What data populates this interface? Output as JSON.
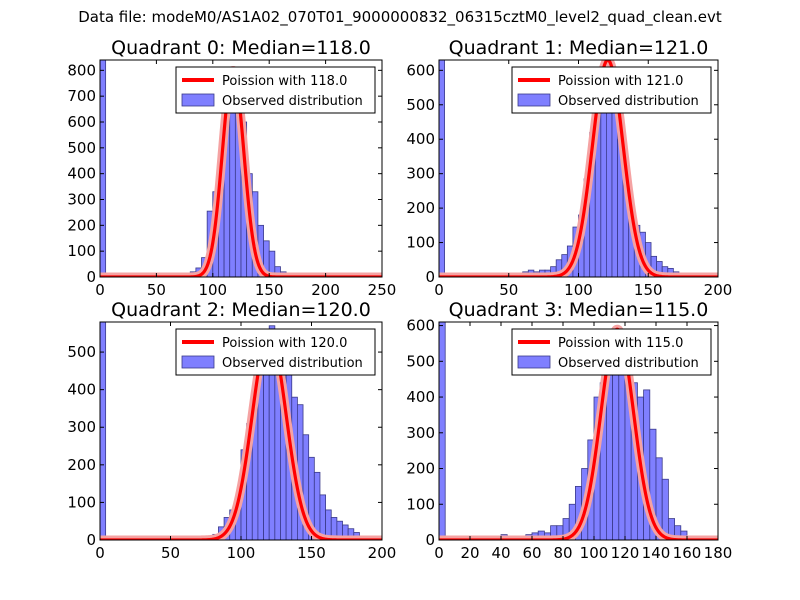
{
  "figure": {
    "title": "Data file: modeM0/AS1A02_070T01_9000000832_06315cztM0_level2_quad_clean.evt"
  },
  "chart_data": [
    {
      "type": "bar",
      "title": "Quadrant 0: Median=118.0",
      "median": 118.0,
      "xlim": [
        0,
        250
      ],
      "ylim": [
        0,
        840
      ],
      "xticks": [
        0,
        50,
        100,
        150,
        200,
        250
      ],
      "yticks": [
        0,
        100,
        200,
        300,
        400,
        500,
        600,
        700,
        800
      ],
      "legend": {
        "fit": "Poission with 118.0",
        "observed": "Observed distribution",
        "placement": "top-right"
      },
      "bin_width": 5,
      "bin_starts": [
        0,
        70,
        75,
        80,
        85,
        90,
        95,
        100,
        105,
        110,
        115,
        120,
        125,
        130,
        135,
        140,
        145,
        150,
        155,
        160,
        165,
        170
      ],
      "counts": [
        840,
        8,
        10,
        20,
        35,
        75,
        255,
        330,
        430,
        600,
        700,
        710,
        600,
        400,
        330,
        200,
        140,
        100,
        40,
        20,
        12,
        5
      ],
      "fit_peak": 800,
      "fit_sigma": 9.5
    },
    {
      "type": "bar",
      "title": "Quadrant 1: Median=121.0",
      "median": 121.0,
      "xlim": [
        0,
        200
      ],
      "ylim": [
        0,
        630
      ],
      "xticks": [
        0,
        50,
        100,
        150,
        200
      ],
      "yticks": [
        0,
        100,
        200,
        300,
        400,
        500,
        600
      ],
      "legend": {
        "fit": "Poission with 121.0",
        "observed": "Observed distribution",
        "placement": "top-right"
      },
      "bin_width": 4,
      "bin_starts": [
        0,
        60,
        64,
        68,
        72,
        76,
        80,
        84,
        88,
        92,
        96,
        100,
        104,
        108,
        112,
        116,
        120,
        124,
        128,
        132,
        136,
        140,
        144,
        148,
        152,
        156,
        160,
        164,
        168,
        172
      ],
      "counts": [
        630,
        15,
        20,
        15,
        20,
        20,
        30,
        50,
        65,
        90,
        145,
        180,
        285,
        420,
        590,
        590,
        630,
        490,
        400,
        280,
        200,
        150,
        130,
        100,
        60,
        45,
        30,
        25,
        15,
        8
      ],
      "fit_peak": 630,
      "fit_sigma": 11.0
    },
    {
      "type": "bar",
      "title": "Quadrant 2: Median=120.0",
      "median": 120.0,
      "xlim": [
        0,
        200
      ],
      "ylim": [
        0,
        580
      ],
      "xticks": [
        0,
        50,
        100,
        150,
        200
      ],
      "yticks": [
        0,
        100,
        200,
        300,
        400,
        500
      ],
      "legend": {
        "fit": "Poission with 120.0",
        "observed": "Observed distribution",
        "placement": "top-right"
      },
      "bin_width": 4,
      "bin_starts": [
        0,
        60,
        80,
        84,
        88,
        92,
        96,
        100,
        104,
        108,
        112,
        116,
        120,
        124,
        128,
        132,
        136,
        140,
        144,
        148,
        152,
        156,
        160,
        164,
        168,
        172,
        176,
        180,
        184
      ],
      "counts": [
        580,
        8,
        15,
        35,
        60,
        80,
        110,
        240,
        310,
        400,
        460,
        560,
        570,
        540,
        560,
        500,
        380,
        360,
        280,
        220,
        180,
        120,
        80,
        60,
        50,
        40,
        30,
        20,
        8
      ],
      "fit_peak": 550,
      "fit_sigma": 12.0
    },
    {
      "type": "bar",
      "title": "Quadrant 3: Median=115.0",
      "median": 115.0,
      "xlim": [
        0,
        180
      ],
      "ylim": [
        0,
        610
      ],
      "xticks": [
        0,
        20,
        40,
        60,
        80,
        100,
        120,
        140,
        160,
        180
      ],
      "yticks": [
        0,
        100,
        200,
        300,
        400,
        500,
        600
      ],
      "legend": {
        "fit": "Poission with 115.0",
        "observed": "Observed distribution",
        "placement": "top-right"
      },
      "bin_width": 4,
      "bin_starts": [
        0,
        8,
        16,
        24,
        32,
        40,
        48,
        56,
        60,
        64,
        68,
        72,
        76,
        80,
        84,
        88,
        92,
        96,
        100,
        104,
        108,
        112,
        116,
        120,
        124,
        128,
        132,
        136,
        140,
        144,
        148,
        152,
        156,
        160
      ],
      "counts": [
        610,
        10,
        8,
        10,
        8,
        15,
        10,
        15,
        20,
        25,
        20,
        40,
        40,
        60,
        100,
        150,
        200,
        280,
        400,
        440,
        500,
        570,
        590,
        510,
        440,
        400,
        420,
        310,
        230,
        170,
        60,
        40,
        25,
        10
      ],
      "fit_peak": 590,
      "fit_sigma": 10.5
    }
  ]
}
